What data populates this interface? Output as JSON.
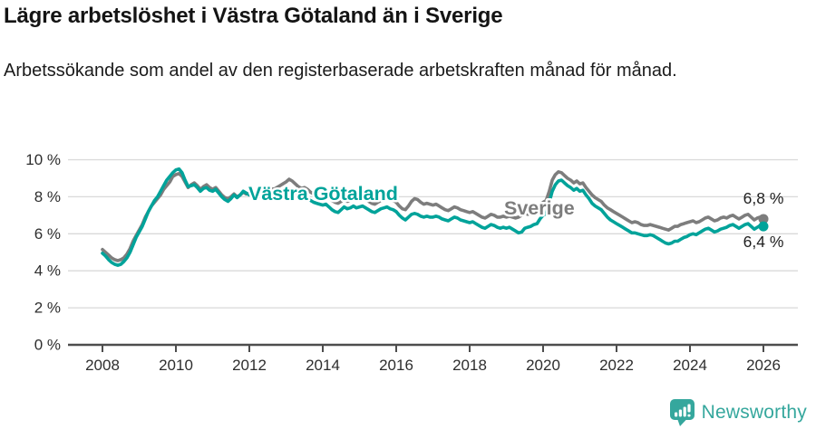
{
  "header": {
    "title": "Lägre arbetslöshet i Västra Götaland än i Sverige",
    "subtitle": "Arbetssökande som andel av den registerbaserade arbetskraften månad för månad."
  },
  "chart_data": {
    "type": "line",
    "x_start_year": 2008,
    "x_frequency": "monthly",
    "x_tick_labels": [
      "2008",
      "2010",
      "2012",
      "2014",
      "2016",
      "2018",
      "2020",
      "2022",
      "2024",
      "2026"
    ],
    "x_tick_years": [
      2008,
      2010,
      2012,
      2014,
      2016,
      2018,
      2020,
      2022,
      2024,
      2026
    ],
    "y_tick_labels": [
      "0 %",
      "2 %",
      "4 %",
      "6 %",
      "8 %",
      "10 %"
    ],
    "y_tick_values": [
      0,
      2,
      4,
      6,
      8,
      10
    ],
    "ylim": [
      0,
      10
    ],
    "grid": "horizontal",
    "legend_position": "inline-labels",
    "series": [
      {
        "name": "Sverige",
        "color": "#7d7d7d",
        "end_label": "6,8 %",
        "end_value": 6.8,
        "values": [
          5.15,
          5.0,
          4.85,
          4.7,
          4.6,
          4.55,
          4.6,
          4.7,
          4.9,
          5.2,
          5.6,
          5.9,
          6.2,
          6.5,
          6.9,
          7.2,
          7.5,
          7.7,
          7.9,
          8.1,
          8.4,
          8.6,
          8.8,
          9.1,
          9.2,
          9.25,
          9.1,
          8.8,
          8.5,
          8.65,
          8.75,
          8.6,
          8.4,
          8.55,
          8.65,
          8.5,
          8.4,
          8.5,
          8.3,
          8.1,
          7.95,
          7.9,
          8.0,
          8.15,
          8.0,
          8.1,
          8.25,
          8.15,
          8.2,
          8.3,
          8.2,
          8.15,
          8.2,
          8.3,
          8.4,
          8.45,
          8.4,
          8.5,
          8.6,
          8.7,
          8.8,
          8.95,
          8.85,
          8.7,
          8.55,
          8.45,
          8.5,
          8.4,
          8.25,
          8.15,
          8.05,
          8.0,
          8.05,
          8.1,
          7.95,
          7.8,
          7.7,
          7.65,
          7.75,
          7.85,
          7.75,
          7.8,
          7.9,
          7.85,
          7.9,
          8.0,
          7.9,
          7.75,
          7.65,
          7.6,
          7.7,
          7.8,
          7.85,
          7.9,
          7.85,
          7.8,
          7.7,
          7.5,
          7.35,
          7.3,
          7.5,
          7.75,
          7.9,
          7.85,
          7.7,
          7.6,
          7.65,
          7.6,
          7.55,
          7.6,
          7.5,
          7.4,
          7.3,
          7.25,
          7.35,
          7.45,
          7.4,
          7.3,
          7.25,
          7.2,
          7.15,
          7.2,
          7.1,
          7.0,
          6.9,
          6.85,
          6.95,
          7.05,
          7.0,
          6.9,
          6.9,
          6.95,
          6.9,
          6.95,
          6.9,
          6.85,
          6.9,
          7.0,
          7.1,
          7.05,
          7.1,
          7.2,
          7.25,
          7.5,
          7.7,
          7.8,
          8.3,
          8.9,
          9.2,
          9.35,
          9.3,
          9.15,
          9.0,
          8.9,
          8.75,
          8.85,
          8.7,
          8.75,
          8.5,
          8.3,
          8.1,
          7.95,
          7.85,
          7.75,
          7.55,
          7.4,
          7.3,
          7.2,
          7.1,
          7.0,
          6.9,
          6.8,
          6.7,
          6.6,
          6.65,
          6.6,
          6.5,
          6.45,
          6.45,
          6.5,
          6.45,
          6.4,
          6.35,
          6.3,
          6.25,
          6.2,
          6.3,
          6.4,
          6.4,
          6.5,
          6.55,
          6.6,
          6.65,
          6.7,
          6.6,
          6.65,
          6.75,
          6.85,
          6.9,
          6.8,
          6.7,
          6.75,
          6.85,
          6.9,
          6.85,
          6.95,
          7.0,
          6.9,
          6.8,
          6.9,
          7.0,
          7.05,
          6.9,
          6.75,
          6.85,
          6.9,
          6.8
        ]
      },
      {
        "name": "Västra Götaland",
        "color": "#00a39a",
        "end_label": "6,4 %",
        "end_value": 6.4,
        "values": [
          4.95,
          4.8,
          4.6,
          4.45,
          4.35,
          4.3,
          4.35,
          4.5,
          4.7,
          5.0,
          5.4,
          5.8,
          6.1,
          6.4,
          6.8,
          7.2,
          7.5,
          7.8,
          8.0,
          8.3,
          8.6,
          8.9,
          9.1,
          9.3,
          9.45,
          9.5,
          9.3,
          8.9,
          8.55,
          8.6,
          8.65,
          8.5,
          8.3,
          8.45,
          8.5,
          8.35,
          8.3,
          8.4,
          8.2,
          8.0,
          7.85,
          7.75,
          7.9,
          8.1,
          7.95,
          8.1,
          8.3,
          8.2,
          8.1,
          8.2,
          8.1,
          8.0,
          8.05,
          8.1,
          8.2,
          8.25,
          8.2,
          8.25,
          8.3,
          8.35,
          8.35,
          8.4,
          8.3,
          8.2,
          8.1,
          8.0,
          8.0,
          7.9,
          7.8,
          7.7,
          7.65,
          7.6,
          7.55,
          7.6,
          7.45,
          7.3,
          7.2,
          7.15,
          7.3,
          7.45,
          7.35,
          7.4,
          7.5,
          7.4,
          7.45,
          7.5,
          7.4,
          7.3,
          7.2,
          7.15,
          7.25,
          7.35,
          7.4,
          7.45,
          7.35,
          7.3,
          7.2,
          7.0,
          6.85,
          6.75,
          6.9,
          7.05,
          7.1,
          7.05,
          6.95,
          6.9,
          6.95,
          6.9,
          6.9,
          6.95,
          6.9,
          6.8,
          6.75,
          6.7,
          6.8,
          6.9,
          6.85,
          6.75,
          6.7,
          6.65,
          6.6,
          6.65,
          6.55,
          6.45,
          6.35,
          6.3,
          6.4,
          6.5,
          6.45,
          6.35,
          6.3,
          6.35,
          6.3,
          6.35,
          6.25,
          6.15,
          6.05,
          6.1,
          6.3,
          6.35,
          6.4,
          6.5,
          6.55,
          6.8,
          7.0,
          7.1,
          7.7,
          8.3,
          8.65,
          8.85,
          8.9,
          8.75,
          8.6,
          8.5,
          8.35,
          8.45,
          8.3,
          8.35,
          8.1,
          7.9,
          7.65,
          7.5,
          7.4,
          7.3,
          7.1,
          6.9,
          6.75,
          6.65,
          6.55,
          6.45,
          6.35,
          6.25,
          6.15,
          6.05,
          6.05,
          6.0,
          5.95,
          5.9,
          5.9,
          5.95,
          5.9,
          5.8,
          5.7,
          5.6,
          5.5,
          5.45,
          5.5,
          5.6,
          5.6,
          5.7,
          5.8,
          5.85,
          5.95,
          6.0,
          5.95,
          6.05,
          6.15,
          6.25,
          6.3,
          6.2,
          6.1,
          6.15,
          6.25,
          6.3,
          6.35,
          6.45,
          6.5,
          6.4,
          6.3,
          6.4,
          6.5,
          6.55,
          6.4,
          6.25,
          6.35,
          6.45,
          6.4
        ]
      }
    ],
    "colors": {
      "grid": "#d9d9d9",
      "axis": "#4d4d4d",
      "tick_text": "#2e2e2e",
      "end_label_text": "#1f1f1f"
    }
  },
  "branding": {
    "logo_text": "Newsworthy",
    "logo_color": "#35a79d",
    "logo_icon": "bar-chart-speech-bubble-icon"
  }
}
